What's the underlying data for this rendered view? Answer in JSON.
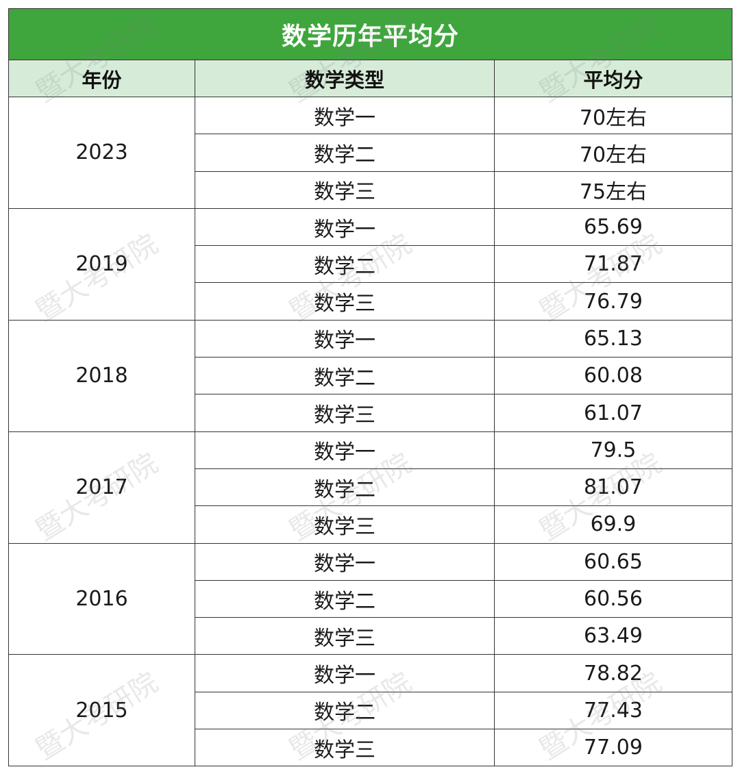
{
  "title": "数学历年平均分",
  "headers": {
    "year": "年份",
    "type": "数学类型",
    "avg": "平均分"
  },
  "watermark_text": "暨大考研院",
  "groups": [
    {
      "year": "2023",
      "rows": [
        {
          "type": "数学一",
          "avg": "70左右"
        },
        {
          "type": "数学二",
          "avg": "70左右"
        },
        {
          "type": "数学三",
          "avg": "75左右"
        }
      ]
    },
    {
      "year": "2019",
      "rows": [
        {
          "type": "数学一",
          "avg": "65.69"
        },
        {
          "type": "数学二",
          "avg": "71.87"
        },
        {
          "type": "数学三",
          "avg": "76.79"
        }
      ]
    },
    {
      "year": "2018",
      "rows": [
        {
          "type": "数学一",
          "avg": "65.13"
        },
        {
          "type": "数学二",
          "avg": "60.08"
        },
        {
          "type": "数学三",
          "avg": "61.07"
        }
      ]
    },
    {
      "year": "2017",
      "rows": [
        {
          "type": "数学一",
          "avg": "79.5"
        },
        {
          "type": "数学二",
          "avg": "81.07"
        },
        {
          "type": "数学三",
          "avg": "69.9"
        }
      ]
    },
    {
      "year": "2016",
      "rows": [
        {
          "type": "数学一",
          "avg": "60.65"
        },
        {
          "type": "数学二",
          "avg": "60.56"
        },
        {
          "type": "数学三",
          "avg": "63.49"
        }
      ]
    },
    {
      "year": "2015",
      "rows": [
        {
          "type": "数学一",
          "avg": "78.82"
        },
        {
          "type": "数学二",
          "avg": "77.43"
        },
        {
          "type": "数学三",
          "avg": "77.09"
        }
      ]
    }
  ],
  "colors": {
    "title_bg": "#3fa63d",
    "header_bg": "#d6ecd8",
    "border": "#333333"
  }
}
